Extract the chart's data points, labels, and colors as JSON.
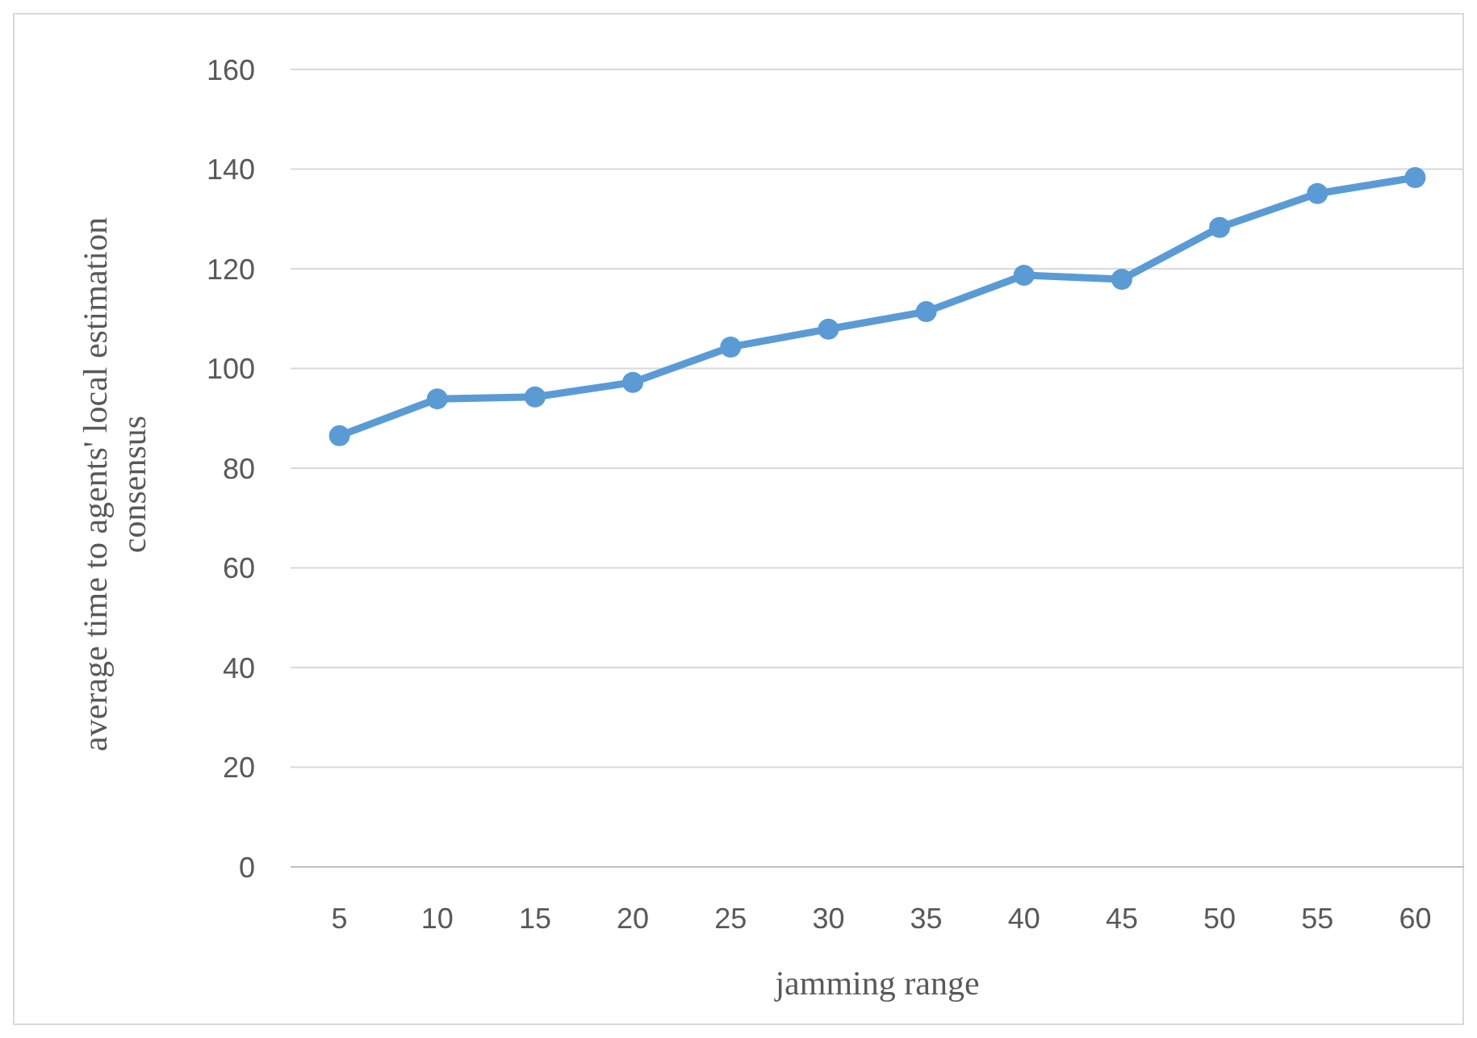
{
  "chart_data": {
    "type": "line",
    "xlabel": "jamming range",
    "ylabel": "average time to agents' local estimation consensus",
    "categories": [
      "5",
      "10",
      "15",
      "20",
      "25",
      "30",
      "35",
      "40",
      "45",
      "50",
      "55",
      "60"
    ],
    "series": [
      {
        "color": "#5b9bd5",
        "values": [
          86.5,
          93.9,
          94.3,
          97.2,
          104.3,
          107.9,
          111.4,
          118.7,
          117.9,
          128.3,
          135.1,
          138.3
        ]
      }
    ],
    "ylim": [
      0,
      160
    ],
    "yticks": [
      0,
      20,
      40,
      60,
      80,
      100,
      120,
      140,
      160
    ],
    "grid": "y",
    "marker": "circle",
    "line_style": "solid"
  }
}
